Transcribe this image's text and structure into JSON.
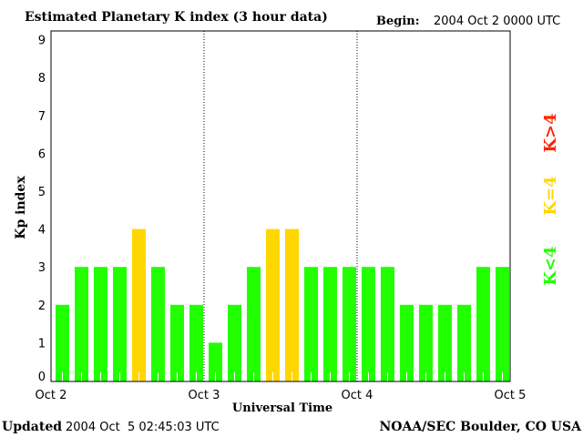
{
  "chart_data": {
    "type": "bar",
    "title": "Estimated Planetary K index (3 hour data)",
    "begin_label": "Begin:",
    "begin_value": "2004 Oct 2 0000 UTC",
    "xlabel": "Universal Time",
    "ylabel": "Kp index",
    "ylim": [
      0,
      9
    ],
    "yticks": [
      "0",
      "1",
      "2",
      "3",
      "4",
      "5",
      "6",
      "7",
      "8",
      "9"
    ],
    "xticks": [
      "Oct 2",
      "Oct 3",
      "Oct 4",
      "Oct 5"
    ],
    "values": [
      2,
      3,
      3,
      3,
      4,
      3,
      2,
      2,
      1,
      2,
      3,
      4,
      4,
      3,
      3,
      3,
      3,
      3,
      2,
      2,
      2,
      2,
      3,
      3
    ],
    "legend": [
      {
        "label": "K<4",
        "color": "#22ff00"
      },
      {
        "label": "K=4",
        "color": "#ffd700"
      },
      {
        "label": "K>4",
        "color": "#ff2200"
      }
    ],
    "updated_label": "Updated",
    "updated_value": "2004 Oct  5 02:45:03 UTC",
    "source": "NOAA/SEC Boulder, CO USA"
  }
}
